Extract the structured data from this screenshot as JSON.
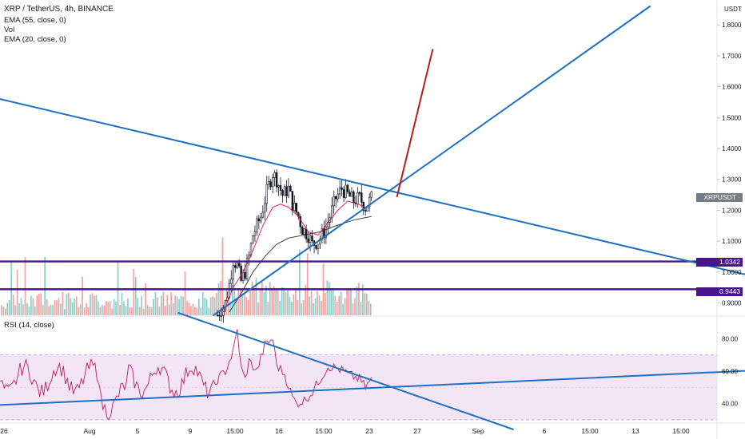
{
  "header": {
    "title": "XRP / TetherUS, 4h, BINANCE",
    "indicators": [
      "EMA (55, close, 0)",
      "Vol",
      "EMA (20, close, 0)"
    ]
  },
  "colors": {
    "up": "#26a69a",
    "down": "#ef5350",
    "candle": "#131722",
    "ema20": "#e91e63",
    "ema55": "#2b2b2b",
    "trendline": "#1e6fc2",
    "projection": "#b71c1c",
    "hline": "#4a148c",
    "rsi_line": "#c2185b",
    "rsi_band": "#f3e5f5"
  },
  "price_axis": {
    "currency": "USDT",
    "ticks": [
      "1.8000",
      "1.7000",
      "1.6000",
      "1.5000",
      "1.4000",
      "1.3000",
      "1.2000",
      "1.1000",
      "1.0000",
      "0.9000"
    ]
  },
  "badges": {
    "symbol": "XRPUSDT",
    "last_price": "1.2369",
    "level_1": "1.0342",
    "level_2": "0.9443"
  },
  "rsi": {
    "label": "RSI (14, close)",
    "ticks": [
      "80.00",
      "60.00",
      "40.00"
    ],
    "upper": 70,
    "lower": 30
  },
  "time_axis": {
    "labels": [
      "26",
      "Aug",
      "5",
      "9",
      "15:00",
      "16",
      "15:00",
      "23",
      "27",
      "Sep",
      "6",
      "15:00",
      "13",
      "15:00"
    ]
  },
  "chart_data": {
    "type": "candlestick",
    "title": "XRP / TetherUS, 4h, BINANCE",
    "y_range": [
      0.86,
      1.86
    ],
    "rsi_range": [
      28,
      90
    ],
    "horizontal_levels": [
      1.0342,
      0.9443
    ],
    "last_price": 1.2369,
    "price_path": [
      [
        0,
        0.86
      ],
      [
        4,
        0.9
      ],
      [
        6,
        0.96
      ],
      [
        8,
        1.04
      ],
      [
        10,
        1.02
      ],
      [
        12,
        0.97
      ],
      [
        14,
        1.0
      ],
      [
        16,
        1.05
      ],
      [
        18,
        1.12
      ],
      [
        22,
        1.18
      ],
      [
        25,
        1.26
      ],
      [
        28,
        1.32
      ],
      [
        30,
        1.3
      ],
      [
        33,
        1.25
      ],
      [
        36,
        1.27
      ],
      [
        38,
        1.22
      ],
      [
        41,
        1.18
      ],
      [
        43,
        1.14
      ],
      [
        46,
        1.12
      ],
      [
        48,
        1.09
      ],
      [
        51,
        1.1
      ],
      [
        54,
        1.13
      ],
      [
        57,
        1.18
      ],
      [
        60,
        1.24
      ],
      [
        63,
        1.27
      ],
      [
        66,
        1.25
      ],
      [
        69,
        1.23
      ],
      [
        72,
        1.24
      ],
      [
        75,
        1.21
      ],
      [
        78,
        1.24
      ]
    ],
    "ema20": [
      [
        3,
        0.87
      ],
      [
        8,
        0.95
      ],
      [
        13,
        1.0
      ],
      [
        18,
        1.07
      ],
      [
        23,
        1.15
      ],
      [
        28,
        1.21
      ],
      [
        32,
        1.22
      ],
      [
        36,
        1.21
      ],
      [
        41,
        1.18
      ],
      [
        46,
        1.13
      ],
      [
        51,
        1.12
      ],
      [
        56,
        1.16
      ],
      [
        61,
        1.2
      ],
      [
        66,
        1.23
      ],
      [
        71,
        1.22
      ],
      [
        75,
        1.21
      ],
      [
        78,
        1.22
      ]
    ],
    "ema55": [
      [
        6,
        0.87
      ],
      [
        12,
        0.93
      ],
      [
        18,
        1.0
      ],
      [
        24,
        1.05
      ],
      [
        30,
        1.09
      ],
      [
        36,
        1.11
      ],
      [
        44,
        1.12
      ],
      [
        52,
        1.13
      ],
      [
        60,
        1.15
      ],
      [
        70,
        1.17
      ],
      [
        78,
        1.18
      ]
    ],
    "rsi_path": [
      [
        0,
        55
      ],
      [
        4,
        60
      ],
      [
        8,
        72
      ],
      [
        10,
        85
      ],
      [
        12,
        62
      ],
      [
        14,
        55
      ],
      [
        16,
        66
      ],
      [
        20,
        60
      ],
      [
        24,
        76
      ],
      [
        28,
        80
      ],
      [
        30,
        64
      ],
      [
        34,
        58
      ],
      [
        38,
        44
      ],
      [
        40,
        40
      ],
      [
        44,
        42
      ],
      [
        48,
        47
      ],
      [
        52,
        55
      ],
      [
        56,
        63
      ],
      [
        60,
        62
      ],
      [
        64,
        60
      ],
      [
        68,
        57
      ],
      [
        72,
        55
      ],
      [
        75,
        50
      ],
      [
        78,
        55
      ]
    ],
    "trendlines": [
      {
        "name": "descending",
        "from": [
          -130,
          1.59
        ],
        "to": [
          302,
          0.94
        ]
      },
      {
        "name": "ascending",
        "from": [
          -2,
          0.86
        ],
        "to": [
          219,
          1.86
        ]
      },
      {
        "name": "projection",
        "from": [
          91,
          1.245
        ],
        "to": [
          109,
          1.72
        ]
      }
    ],
    "rsi_trendlines": [
      {
        "from": [
          -20,
          96
        ],
        "to": [
          150,
          24
        ]
      },
      {
        "from": [
          -130,
          38
        ],
        "to": [
          300,
          62
        ]
      }
    ]
  }
}
